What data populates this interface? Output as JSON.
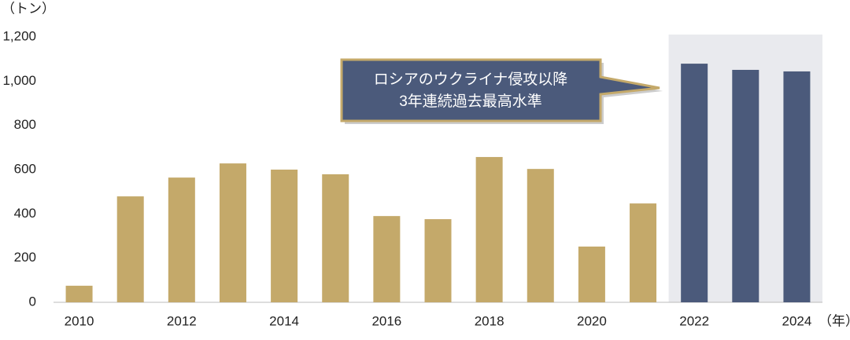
{
  "chart_data": {
    "type": "bar",
    "y_unit": "（トン）",
    "x_unit": "（年）",
    "annotation": [
      "ロシアのウクライナ侵攻以降",
      "3年連続過去最高水準"
    ],
    "categories": [
      "2010",
      null,
      "2012",
      null,
      "2014",
      null,
      "2016",
      null,
      "2018",
      null,
      "2020",
      null,
      "2022",
      null,
      "2024"
    ],
    "values": [
      75,
      479,
      564,
      628,
      600,
      579,
      390,
      376,
      657,
      603,
      252,
      447,
      1079,
      1051,
      1044
    ],
    "colors": [
      "#c4a96a",
      "#c4a96a",
      "#c4a96a",
      "#c4a96a",
      "#c4a96a",
      "#c4a96a",
      "#c4a96a",
      "#c4a96a",
      "#c4a96a",
      "#c4a96a",
      "#c4a96a",
      "#c4a96a",
      "#4b5a7b",
      "#4b5a7b",
      "#4b5a7b"
    ],
    "highlight_color": "#e9eaee",
    "ylim": [
      0,
      1200
    ],
    "yticks": [
      0,
      200,
      400,
      600,
      800,
      {
        "value": 1000,
        "label": "1,000"
      },
      {
        "value": 1200,
        "label": "1,200"
      }
    ],
    "grid": false
  }
}
